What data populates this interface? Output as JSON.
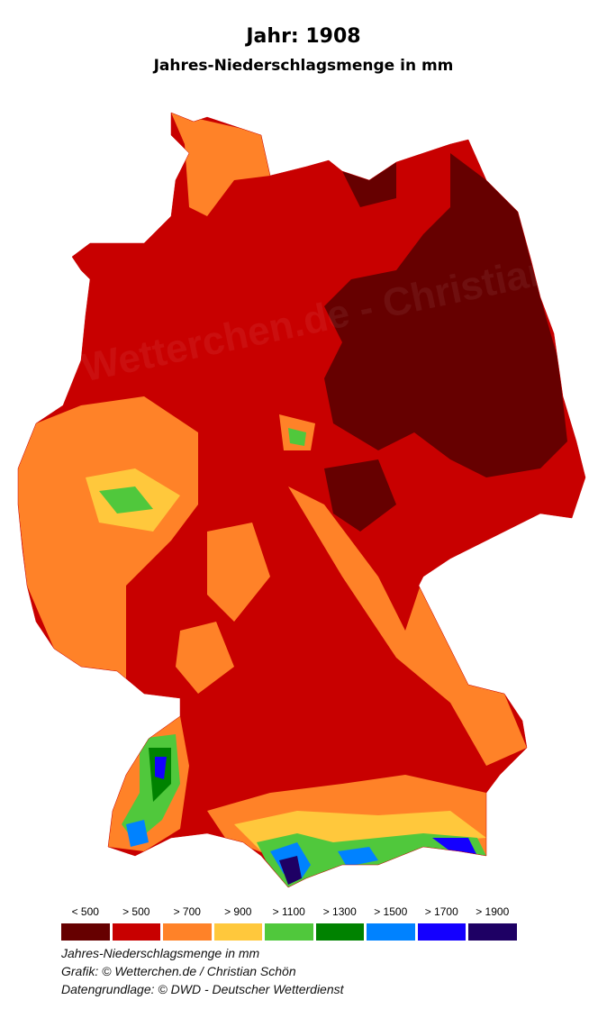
{
  "title": "Jahr: 1908",
  "subtitle": "Jahres-Niederschlagsmenge in mm",
  "watermark": "Wetterchen.de - Christian Schön",
  "legend": [
    {
      "label": "< 500",
      "color": "#660000"
    },
    {
      "label": "> 500",
      "color": "#c80000"
    },
    {
      "label": "> 700",
      "color": "#ff8228"
    },
    {
      "label": "> 900",
      "color": "#ffc83c"
    },
    {
      "label": "> 1100",
      "color": "#50c83c"
    },
    {
      "label": "> 1300",
      "color": "#008200"
    },
    {
      "label": "> 1500",
      "color": "#0082ff"
    },
    {
      "label": "> 1700",
      "color": "#1400ff"
    },
    {
      "label": "> 1900",
      "color": "#1e0064"
    }
  ],
  "footer": {
    "line1": "Jahres-Niederschlagsmenge in mm",
    "line2": "Grafik: © Wetterchen.de / Christian Schön",
    "line3": "Datengrundlage: © DWD - Deutscher Wetterdienst"
  }
}
